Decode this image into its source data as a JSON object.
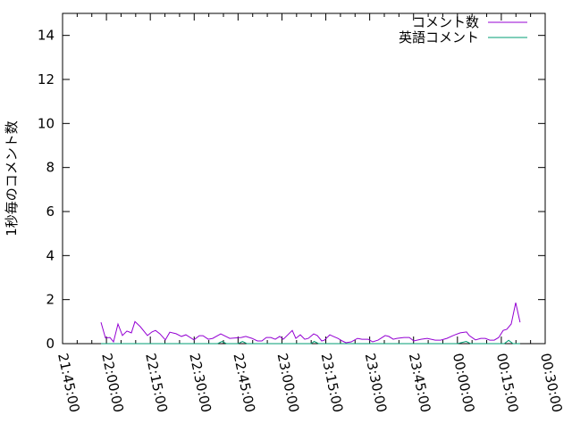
{
  "chart_data": {
    "type": "line",
    "title": "",
    "xlabel": "",
    "ylabel": "1秒毎のコメント数",
    "ylim": [
      0,
      15
    ],
    "yticks": [
      0,
      2,
      4,
      6,
      8,
      10,
      12,
      14
    ],
    "xlim": [
      "21:45:00",
      "00:30:00"
    ],
    "xticks": [
      "21:45:00",
      "22:00:00",
      "22:15:00",
      "22:30:00",
      "22:45:00",
      "23:00:00",
      "23:15:00",
      "23:30:00",
      "23:45:00",
      "00:00:00",
      "00:15:00",
      "00:30:00"
    ],
    "grid": false,
    "legend": "top-right",
    "series": [
      {
        "name": "コメント数",
        "color": "#9400d3",
        "x": [
          "21:58:08",
          "21:59:40",
          "22:01:12",
          "22:02:25",
          "22:03:57",
          "22:05:28",
          "22:07:00",
          "22:08:32",
          "22:09:45",
          "22:11:35",
          "22:14:02",
          "22:15:33",
          "22:16:47",
          "22:18:18",
          "22:20:08",
          "22:21:40",
          "22:23:48",
          "22:25:38",
          "22:27:10",
          "22:29:55",
          "22:31:45",
          "22:33:00",
          "22:34:48",
          "22:36:20",
          "22:39:05",
          "22:42:08",
          "22:46:07",
          "22:47:38",
          "22:49:47",
          "22:51:37",
          "22:53:08",
          "22:54:40",
          "22:56:12",
          "22:57:43",
          "22:59:15",
          "23:00:28",
          "23:03:32",
          "23:04:45",
          "23:06:17",
          "23:07:48",
          "23:09:02",
          "23:10:52",
          "23:12:05",
          "23:13:37",
          "23:14:32",
          "23:16:22",
          "23:17:35",
          "23:19:07",
          "23:20:38",
          "23:21:52",
          "23:23:42",
          "23:25:50",
          "23:27:22",
          "23:29:30",
          "23:31:02",
          "23:32:52",
          "23:35:19",
          "23:36:32",
          "23:38:03",
          "23:39:17",
          "23:41:43",
          "23:43:33",
          "23:45:05",
          "23:47:32",
          "23:49:40",
          "23:52:25",
          "23:54:15",
          "23:56:23",
          "23:58:32",
          "00:00:58",
          "00:03:07",
          "00:04:02",
          "00:06:10",
          "00:08:00",
          "00:09:32",
          "00:11:03",
          "00:12:35",
          "00:14:07",
          "00:15:38",
          "00:16:52",
          "00:18:23",
          "00:19:55",
          "00:21:25"
        ],
        "y": [
          0.97,
          0.26,
          0.28,
          0.08,
          0.89,
          0.37,
          0.57,
          0.49,
          1.0,
          0.77,
          0.37,
          0.53,
          0.6,
          0.44,
          0.17,
          0.52,
          0.45,
          0.33,
          0.4,
          0.17,
          0.36,
          0.36,
          0.2,
          0.24,
          0.44,
          0.24,
          0.28,
          0.33,
          0.24,
          0.12,
          0.12,
          0.28,
          0.28,
          0.2,
          0.33,
          0.2,
          0.6,
          0.24,
          0.4,
          0.2,
          0.24,
          0.44,
          0.37,
          0.12,
          0.16,
          0.4,
          0.33,
          0.24,
          0.12,
          0.04,
          0.08,
          0.24,
          0.2,
          0.2,
          0.08,
          0.16,
          0.37,
          0.33,
          0.2,
          0.24,
          0.28,
          0.28,
          0.12,
          0.2,
          0.24,
          0.16,
          0.16,
          0.24,
          0.37,
          0.49,
          0.53,
          0.37,
          0.17,
          0.24,
          0.24,
          0.16,
          0.16,
          0.28,
          0.6,
          0.65,
          0.89,
          1.86,
          0.97
        ]
      },
      {
        "name": "英語コメント",
        "color": "#009e73",
        "x": [
          "21:58:08",
          "22:10:00",
          "22:20:00",
          "22:30:00",
          "22:38:00",
          "22:39:30",
          "22:41:00",
          "22:45:00",
          "22:46:30",
          "22:48:00",
          "23:00:00",
          "23:10:00",
          "23:11:00",
          "23:12:30",
          "23:20:00",
          "23:30:00",
          "23:40:00",
          "23:50:00",
          "00:00:00",
          "00:03:00",
          "00:04:30",
          "00:10:00",
          "00:16:00",
          "00:17:30",
          "00:19:00",
          "00:21:25"
        ],
        "y": [
          0,
          0,
          0,
          0,
          0,
          0.1,
          0,
          0,
          0.1,
          0,
          0,
          0,
          0.1,
          0,
          0,
          0,
          0,
          0,
          0,
          0.1,
          0,
          0,
          0,
          0.15,
          0,
          0
        ]
      }
    ]
  }
}
